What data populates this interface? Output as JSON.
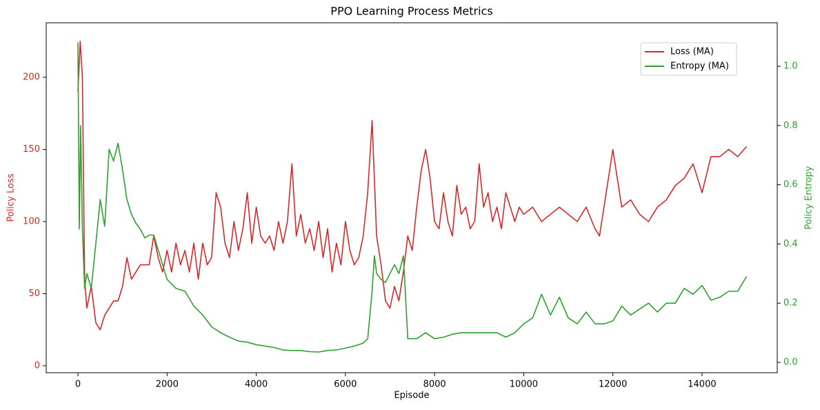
{
  "chart_data": {
    "type": "line",
    "title": "PPO Learning Process Metrics",
    "xlabel": "Episode",
    "ylabel": "Policy Loss",
    "y2label": "Policy Entropy",
    "xlim": [
      -712,
      15687
    ],
    "xticks": [
      0,
      2000,
      4000,
      6000,
      8000,
      10000,
      12000,
      14000
    ],
    "ylim": [
      -4.8,
      237.8
    ],
    "yticks": [
      0,
      50,
      100,
      150,
      200
    ],
    "y2lim": [
      -0.035,
      1.147
    ],
    "y2ticks": [
      0.0,
      {
        "value": 0.2,
        "label": "0.2"
      },
      {
        "value": 0.4,
        "label": "0.4"
      },
      {
        "value": 0.6,
        "label": "0.6"
      },
      {
        "value": 0.8,
        "label": "0.8"
      },
      {
        "value": 1.0,
        "label": "1.0"
      }
    ],
    "ycolor": "#d62728",
    "y2color": "#2ca02c",
    "legend": "upper right",
    "series": [
      {
        "name": "Loss (MA)",
        "color": "#d62728",
        "axis": "y",
        "x": [
          0,
          50,
          100,
          150,
          200,
          300,
          400,
          500,
          600,
          700,
          800,
          900,
          1000,
          1100,
          1200,
          1300,
          1400,
          1500,
          1600,
          1700,
          1800,
          1900,
          2000,
          2100,
          2200,
          2300,
          2400,
          2500,
          2600,
          2700,
          2800,
          2900,
          3000,
          3100,
          3200,
          3300,
          3400,
          3500,
          3600,
          3700,
          3800,
          3900,
          4000,
          4100,
          4200,
          4300,
          4400,
          4500,
          4600,
          4700,
          4800,
          4900,
          5000,
          5100,
          5200,
          5300,
          5400,
          5500,
          5600,
          5700,
          5800,
          5900,
          6000,
          6100,
          6200,
          6300,
          6400,
          6500,
          6600,
          6700,
          6800,
          6900,
          7000,
          7100,
          7200,
          7300,
          7400,
          7500,
          7600,
          7700,
          7800,
          7900,
          8000,
          8100,
          8200,
          8300,
          8400,
          8500,
          8600,
          8700,
          8800,
          8900,
          9000,
          9100,
          9200,
          9300,
          9400,
          9500,
          9600,
          9700,
          9800,
          9900,
          10000,
          10200,
          10400,
          10600,
          10800,
          11000,
          11200,
          11400,
          11600,
          11700,
          11800,
          12000,
          12100,
          12200,
          12400,
          12600,
          12800,
          13000,
          13200,
          13400,
          13600,
          13800,
          14000,
          14200,
          14400,
          14600,
          14800,
          15000
        ],
        "values": [
          190,
          225,
          200,
          60,
          40,
          55,
          30,
          25,
          35,
          40,
          45,
          45,
          55,
          75,
          60,
          65,
          70,
          70,
          70,
          90,
          75,
          65,
          80,
          65,
          85,
          70,
          80,
          65,
          85,
          60,
          85,
          70,
          75,
          120,
          110,
          85,
          75,
          100,
          80,
          95,
          120,
          85,
          110,
          90,
          85,
          90,
          80,
          100,
          85,
          100,
          140,
          90,
          105,
          85,
          95,
          80,
          100,
          75,
          95,
          65,
          85,
          70,
          100,
          80,
          70,
          75,
          90,
          120,
          170,
          90,
          70,
          45,
          40,
          55,
          45,
          65,
          90,
          80,
          110,
          135,
          150,
          130,
          100,
          95,
          120,
          100,
          90,
          125,
          105,
          110,
          95,
          100,
          140,
          110,
          120,
          100,
          110,
          95,
          120,
          110,
          100,
          110,
          105,
          110,
          100,
          105,
          110,
          105,
          100,
          110,
          95,
          90,
          110,
          150,
          130,
          110,
          115,
          105,
          100,
          110,
          115,
          125,
          130,
          140,
          120,
          145,
          145,
          150,
          145,
          152
        ]
      },
      {
        "name": "Entropy (MA)",
        "color": "#2ca02c",
        "axis": "y2",
        "x": [
          0,
          30,
          60,
          100,
          150,
          200,
          300,
          400,
          500,
          600,
          700,
          800,
          900,
          1000,
          1100,
          1200,
          1300,
          1400,
          1500,
          1600,
          1700,
          1800,
          1900,
          2000,
          2200,
          2400,
          2600,
          2800,
          3000,
          3200,
          3400,
          3600,
          3800,
          4000,
          4200,
          4400,
          4600,
          4800,
          5000,
          5200,
          5400,
          5600,
          5800,
          6000,
          6200,
          6400,
          6500,
          6600,
          6650,
          6700,
          6800,
          6900,
          7000,
          7100,
          7200,
          7300,
          7400,
          7500,
          7600,
          7800,
          8000,
          8200,
          8400,
          8600,
          8800,
          9000,
          9200,
          9400,
          9600,
          9800,
          10000,
          10200,
          10400,
          10600,
          10800,
          11000,
          11200,
          11400,
          11600,
          11800,
          12000,
          12200,
          12400,
          12600,
          12800,
          13000,
          13200,
          13400,
          13600,
          13800,
          14000,
          14200,
          14400,
          14600,
          14800,
          15000
        ],
        "values": [
          1.08,
          0.45,
          0.8,
          0.45,
          0.25,
          0.3,
          0.25,
          0.4,
          0.55,
          0.46,
          0.72,
          0.68,
          0.74,
          0.65,
          0.55,
          0.5,
          0.47,
          0.45,
          0.42,
          0.43,
          0.43,
          0.38,
          0.33,
          0.28,
          0.25,
          0.24,
          0.19,
          0.16,
          0.12,
          0.1,
          0.085,
          0.072,
          0.068,
          0.06,
          0.055,
          0.05,
          0.042,
          0.04,
          0.04,
          0.036,
          0.035,
          0.04,
          0.042,
          0.048,
          0.055,
          0.065,
          0.08,
          0.24,
          0.36,
          0.3,
          0.28,
          0.27,
          0.3,
          0.33,
          0.3,
          0.36,
          0.08,
          0.08,
          0.08,
          0.1,
          0.08,
          0.085,
          0.095,
          0.1,
          0.1,
          0.1,
          0.1,
          0.1,
          0.085,
          0.1,
          0.13,
          0.15,
          0.23,
          0.16,
          0.22,
          0.15,
          0.13,
          0.17,
          0.13,
          0.13,
          0.14,
          0.19,
          0.16,
          0.18,
          0.2,
          0.17,
          0.2,
          0.2,
          0.25,
          0.23,
          0.26,
          0.21,
          0.22,
          0.24,
          0.24,
          0.29
        ]
      }
    ]
  }
}
